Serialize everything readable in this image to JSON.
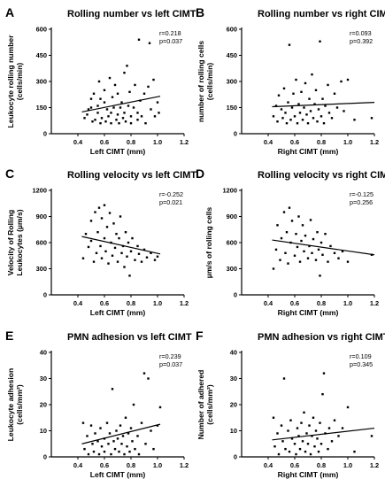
{
  "chart_data": [
    {
      "panel": "A",
      "type": "scatter",
      "title": "Rolling number vs left CIMT",
      "xlabel": "Left CIMT (mm)",
      "ylabel": [
        "Leukocyte rolling number",
        "(cells/min)"
      ],
      "xlim": [
        0.2,
        1.2
      ],
      "ylim": [
        0,
        600
      ],
      "xticks": [
        0.4,
        0.6,
        0.8,
        1.0,
        1.2
      ],
      "xtick_labels": [
        "0.4",
        "0.6",
        "0.8",
        "1.0",
        "1.2"
      ],
      "yticks": [
        0,
        150,
        300,
        450,
        600
      ],
      "ytick_labels": [
        "0",
        "150",
        "300",
        "450",
        "600"
      ],
      "stats": [
        "r=0.218",
        "p=0.037"
      ],
      "regression": {
        "x": [
          0.43,
          1.02
        ],
        "y": [
          125,
          215
        ]
      },
      "points": [
        [
          0.45,
          90
        ],
        [
          0.47,
          110
        ],
        [
          0.48,
          140
        ],
        [
          0.5,
          200
        ],
        [
          0.5,
          150
        ],
        [
          0.51,
          70
        ],
        [
          0.52,
          230
        ],
        [
          0.53,
          80
        ],
        [
          0.55,
          120
        ],
        [
          0.55,
          160
        ],
        [
          0.56,
          300
        ],
        [
          0.57,
          200
        ],
        [
          0.57,
          60
        ],
        [
          0.58,
          90
        ],
        [
          0.6,
          250
        ],
        [
          0.6,
          180
        ],
        [
          0.61,
          70
        ],
        [
          0.62,
          140
        ],
        [
          0.63,
          100
        ],
        [
          0.64,
          320
        ],
        [
          0.65,
          120
        ],
        [
          0.65,
          60
        ],
        [
          0.66,
          210
        ],
        [
          0.67,
          150
        ],
        [
          0.68,
          280
        ],
        [
          0.69,
          80
        ],
        [
          0.7,
          110
        ],
        [
          0.7,
          230
        ],
        [
          0.71,
          60
        ],
        [
          0.72,
          150
        ],
        [
          0.73,
          180
        ],
        [
          0.74,
          90
        ],
        [
          0.75,
          350
        ],
        [
          0.75,
          120
        ],
        [
          0.76,
          70
        ],
        [
          0.77,
          390
        ],
        [
          0.78,
          160
        ],
        [
          0.79,
          240
        ],
        [
          0.8,
          100
        ],
        [
          0.8,
          60
        ],
        [
          0.82,
          150
        ],
        [
          0.83,
          280
        ],
        [
          0.85,
          120
        ],
        [
          0.85,
          80
        ],
        [
          0.86,
          540
        ],
        [
          0.87,
          190
        ],
        [
          0.88,
          100
        ],
        [
          0.9,
          230
        ],
        [
          0.91,
          60
        ],
        [
          0.93,
          270
        ],
        [
          0.94,
          520
        ],
        [
          0.95,
          140
        ],
        [
          0.97,
          310
        ],
        [
          0.98,
          100
        ],
        [
          1.0,
          180
        ],
        [
          1.01,
          120
        ]
      ]
    },
    {
      "panel": "B",
      "type": "scatter",
      "title": "Rolling number vs right CIMT",
      "xlabel": "Right CIMT (mm)",
      "ylabel": [
        "number of rolling cells",
        "(cells/min)"
      ],
      "xlim": [
        0.2,
        1.2
      ],
      "ylim": [
        0,
        600
      ],
      "xticks": [
        0.4,
        0.6,
        0.8,
        1.0,
        1.2
      ],
      "xtick_labels": [
        "0.4",
        "0.6",
        "0.8",
        "1.0",
        "1.2"
      ],
      "yticks": [
        0,
        150,
        300,
        450,
        600
      ],
      "ytick_labels": [
        "0",
        "150",
        "300",
        "450",
        "600"
      ],
      "stats": [
        "r=0.093",
        "p=0.392"
      ],
      "regression": {
        "x": [
          0.43,
          1.2
        ],
        "y": [
          155,
          180
        ]
      },
      "points": [
        [
          0.44,
          100
        ],
        [
          0.46,
          160
        ],
        [
          0.47,
          70
        ],
        [
          0.48,
          220
        ],
        [
          0.5,
          140
        ],
        [
          0.51,
          90
        ],
        [
          0.52,
          260
        ],
        [
          0.53,
          120
        ],
        [
          0.54,
          60
        ],
        [
          0.55,
          180
        ],
        [
          0.56,
          510
        ],
        [
          0.57,
          80
        ],
        [
          0.58,
          150
        ],
        [
          0.59,
          230
        ],
        [
          0.6,
          100
        ],
        [
          0.61,
          310
        ],
        [
          0.62,
          60
        ],
        [
          0.63,
          170
        ],
        [
          0.64,
          120
        ],
        [
          0.65,
          240
        ],
        [
          0.66,
          80
        ],
        [
          0.67,
          150
        ],
        [
          0.68,
          290
        ],
        [
          0.69,
          110
        ],
        [
          0.7,
          60
        ],
        [
          0.71,
          200
        ],
        [
          0.72,
          130
        ],
        [
          0.73,
          340
        ],
        [
          0.74,
          90
        ],
        [
          0.75,
          170
        ],
        [
          0.76,
          250
        ],
        [
          0.77,
          70
        ],
        [
          0.78,
          140
        ],
        [
          0.79,
          530
        ],
        [
          0.8,
          100
        ],
        [
          0.81,
          200
        ],
        [
          0.82,
          60
        ],
        [
          0.83,
          160
        ],
        [
          0.85,
          280
        ],
        [
          0.86,
          120
        ],
        [
          0.88,
          90
        ],
        [
          0.9,
          230
        ],
        [
          0.92,
          150
        ],
        [
          0.95,
          300
        ],
        [
          0.97,
          130
        ],
        [
          1.0,
          310
        ],
        [
          1.05,
          80
        ],
        [
          1.18,
          90
        ]
      ]
    },
    {
      "panel": "C",
      "type": "scatter",
      "title": "Rolling velocity vs left CIMT",
      "xlabel": "Left CIMT (mm)",
      "ylabel": [
        "Velocity of Rolling",
        "Leukocytes (µm/s)"
      ],
      "xlim": [
        0.2,
        1.2
      ],
      "ylim": [
        0,
        1200
      ],
      "xticks": [
        0.4,
        0.6,
        0.8,
        1.0,
        1.2
      ],
      "xtick_labels": [
        "0.4",
        "0.6",
        "0.8",
        "1.0",
        "1.2"
      ],
      "yticks": [
        0,
        300,
        600,
        900,
        1200
      ],
      "ytick_labels": [
        "0",
        "300",
        "600",
        "900",
        "1200"
      ],
      "stats": [
        "r=-0.252",
        "p=0.021"
      ],
      "regression": {
        "x": [
          0.43,
          1.02
        ],
        "y": [
          670,
          470
        ]
      },
      "points": [
        [
          0.44,
          420
        ],
        [
          0.46,
          700
        ],
        [
          0.48,
          550
        ],
        [
          0.5,
          850
        ],
        [
          0.5,
          620
        ],
        [
          0.52,
          380
        ],
        [
          0.53,
          950
        ],
        [
          0.54,
          480
        ],
        [
          0.55,
          720
        ],
        [
          0.56,
          1000
        ],
        [
          0.57,
          560
        ],
        [
          0.58,
          880
        ],
        [
          0.58,
          420
        ],
        [
          0.6,
          1030
        ],
        [
          0.6,
          650
        ],
        [
          0.61,
          500
        ],
        [
          0.62,
          780
        ],
        [
          0.63,
          360
        ],
        [
          0.64,
          940
        ],
        [
          0.65,
          600
        ],
        [
          0.66,
          450
        ],
        [
          0.67,
          820
        ],
        [
          0.68,
          540
        ],
        [
          0.69,
          700
        ],
        [
          0.7,
          380
        ],
        [
          0.71,
          650
        ],
        [
          0.72,
          900
        ],
        [
          0.73,
          480
        ],
        [
          0.74,
          560
        ],
        [
          0.75,
          320
        ],
        [
          0.76,
          720
        ],
        [
          0.77,
          440
        ],
        [
          0.78,
          600
        ],
        [
          0.79,
          220
        ],
        [
          0.8,
          500
        ],
        [
          0.81,
          650
        ],
        [
          0.83,
          400
        ],
        [
          0.85,
          560
        ],
        [
          0.86,
          470
        ],
        [
          0.88,
          380
        ],
        [
          0.9,
          520
        ],
        [
          0.92,
          430
        ],
        [
          0.95,
          480
        ],
        [
          0.98,
          400
        ],
        [
          1.0,
          440
        ]
      ]
    },
    {
      "panel": "D",
      "type": "scatter",
      "title": "Rolling velocity vs right CIMT",
      "xlabel": "Right CIMT (mm)",
      "ylabel": [
        "µm/s of rolling cells"
      ],
      "xlim": [
        0.2,
        1.2
      ],
      "ylim": [
        0,
        1200
      ],
      "xticks": [
        0.4,
        0.6,
        0.8,
        1.0,
        1.2
      ],
      "xtick_labels": [
        "0.4",
        "0.6",
        "0.8",
        "1.0",
        "1.2"
      ],
      "yticks": [
        0,
        300,
        600,
        900,
        1200
      ],
      "ytick_labels": [
        "0",
        "300",
        "600",
        "900",
        "1200"
      ],
      "stats": [
        "r=-0.125",
        "p=0.256"
      ],
      "regression": {
        "x": [
          0.43,
          1.2
        ],
        "y": [
          630,
          460
        ]
      },
      "points": [
        [
          0.44,
          300
        ],
        [
          0.46,
          520
        ],
        [
          0.47,
          800
        ],
        [
          0.49,
          400
        ],
        [
          0.5,
          650
        ],
        [
          0.52,
          950
        ],
        [
          0.53,
          480
        ],
        [
          0.54,
          720
        ],
        [
          0.55,
          360
        ],
        [
          0.56,
          1000
        ],
        [
          0.57,
          600
        ],
        [
          0.58,
          850
        ],
        [
          0.6,
          450
        ],
        [
          0.61,
          700
        ],
        [
          0.62,
          550
        ],
        [
          0.63,
          900
        ],
        [
          0.64,
          380
        ],
        [
          0.65,
          620
        ],
        [
          0.66,
          800
        ],
        [
          0.67,
          500
        ],
        [
          0.68,
          680
        ],
        [
          0.7,
          420
        ],
        [
          0.71,
          560
        ],
        [
          0.72,
          860
        ],
        [
          0.73,
          480
        ],
        [
          0.74,
          640
        ],
        [
          0.76,
          400
        ],
        [
          0.77,
          720
        ],
        [
          0.78,
          520
        ],
        [
          0.79,
          220
        ],
        [
          0.8,
          600
        ],
        [
          0.81,
          460
        ],
        [
          0.83,
          700
        ],
        [
          0.85,
          380
        ],
        [
          0.87,
          560
        ],
        [
          0.9,
          480
        ],
        [
          0.93,
          420
        ],
        [
          0.96,
          500
        ],
        [
          1.0,
          380
        ],
        [
          1.18,
          460
        ]
      ]
    },
    {
      "panel": "E",
      "type": "scatter",
      "title": "PMN adhesion vs left CIMT",
      "xlabel": "Left CIMT (mm)",
      "ylabel": [
        "Leukocyte adhesion",
        "(cells/mm²)"
      ],
      "xlim": [
        0.2,
        1.2
      ],
      "ylim": [
        0,
        40
      ],
      "xticks": [
        0.4,
        0.6,
        0.8,
        1.0,
        1.2
      ],
      "xtick_labels": [
        "0.4",
        "0.6",
        "0.8",
        "1.0",
        "1.2"
      ],
      "yticks": [
        0,
        10,
        20,
        30,
        40
      ],
      "ytick_labels": [
        "0",
        "10",
        "20",
        "30",
        "40"
      ],
      "stats": [
        "r=0.239",
        "p=0.037"
      ],
      "regression": {
        "x": [
          0.43,
          1.02
        ],
        "y": [
          5,
          12.5
        ]
      },
      "points": [
        [
          0.44,
          13
        ],
        [
          0.45,
          3
        ],
        [
          0.47,
          8
        ],
        [
          0.48,
          1
        ],
        [
          0.5,
          12
        ],
        [
          0.51,
          5
        ],
        [
          0.52,
          2
        ],
        [
          0.53,
          9
        ],
        [
          0.55,
          6
        ],
        [
          0.56,
          1
        ],
        [
          0.57,
          11
        ],
        [
          0.58,
          4
        ],
        [
          0.6,
          7
        ],
        [
          0.6,
          2
        ],
        [
          0.62,
          13
        ],
        [
          0.63,
          5
        ],
        [
          0.64,
          9
        ],
        [
          0.65,
          1
        ],
        [
          0.66,
          26
        ],
        [
          0.67,
          6
        ],
        [
          0.68,
          3
        ],
        [
          0.69,
          10
        ],
        [
          0.7,
          7
        ],
        [
          0.71,
          2
        ],
        [
          0.72,
          12
        ],
        [
          0.73,
          5
        ],
        [
          0.74,
          8
        ],
        [
          0.75,
          1
        ],
        [
          0.76,
          15
        ],
        [
          0.77,
          4
        ],
        [
          0.78,
          9
        ],
        [
          0.79,
          2
        ],
        [
          0.8,
          11
        ],
        [
          0.81,
          6
        ],
        [
          0.82,
          20
        ],
        [
          0.83,
          3
        ],
        [
          0.85,
          8
        ],
        [
          0.86,
          1
        ],
        [
          0.88,
          13
        ],
        [
          0.9,
          32
        ],
        [
          0.91,
          5
        ],
        [
          0.93,
          30
        ],
        [
          0.95,
          10
        ],
        [
          0.97,
          3
        ],
        [
          1.0,
          12
        ],
        [
          1.02,
          19
        ]
      ]
    },
    {
      "panel": "F",
      "type": "scatter",
      "title": "PMN adhesion vs right CIMT",
      "xlabel": "Right CIMT (mm)",
      "ylabel": [
        "Number of adhered",
        "(cells/mm²)"
      ],
      "xlim": [
        0.2,
        1.2
      ],
      "ylim": [
        0,
        40
      ],
      "xticks": [
        0.4,
        0.6,
        0.8,
        1.0,
        1.2
      ],
      "xtick_labels": [
        "0.4",
        "0.6",
        "0.8",
        "1.0",
        "1.2"
      ],
      "yticks": [
        0,
        10,
        20,
        30,
        40
      ],
      "ytick_labels": [
        "0",
        "10",
        "20",
        "30",
        "40"
      ],
      "stats": [
        "r=0.109",
        "p=0.345"
      ],
      "regression": {
        "x": [
          0.43,
          1.2
        ],
        "y": [
          6.5,
          11
        ]
      },
      "points": [
        [
          0.44,
          15
        ],
        [
          0.45,
          4
        ],
        [
          0.47,
          9
        ],
        [
          0.48,
          1
        ],
        [
          0.5,
          12
        ],
        [
          0.51,
          6
        ],
        [
          0.52,
          30
        ],
        [
          0.53,
          3
        ],
        [
          0.55,
          10
        ],
        [
          0.56,
          2
        ],
        [
          0.57,
          14
        ],
        [
          0.58,
          7
        ],
        [
          0.6,
          5
        ],
        [
          0.61,
          1
        ],
        [
          0.62,
          11
        ],
        [
          0.63,
          8
        ],
        [
          0.64,
          3
        ],
        [
          0.65,
          13
        ],
        [
          0.66,
          6
        ],
        [
          0.67,
          17
        ],
        [
          0.68,
          2
        ],
        [
          0.69,
          9
        ],
        [
          0.7,
          5
        ],
        [
          0.71,
          12
        ],
        [
          0.72,
          1
        ],
        [
          0.73,
          8
        ],
        [
          0.74,
          15
        ],
        [
          0.75,
          4
        ],
        [
          0.76,
          10
        ],
        [
          0.77,
          7
        ],
        [
          0.78,
          2
        ],
        [
          0.79,
          13
        ],
        [
          0.8,
          5
        ],
        [
          0.81,
          24
        ],
        [
          0.82,
          32
        ],
        [
          0.83,
          9
        ],
        [
          0.85,
          3
        ],
        [
          0.86,
          11
        ],
        [
          0.88,
          6
        ],
        [
          0.9,
          14
        ],
        [
          0.93,
          8
        ],
        [
          0.96,
          11
        ],
        [
          1.0,
          19
        ],
        [
          1.05,
          2
        ],
        [
          1.18,
          8
        ]
      ]
    }
  ]
}
